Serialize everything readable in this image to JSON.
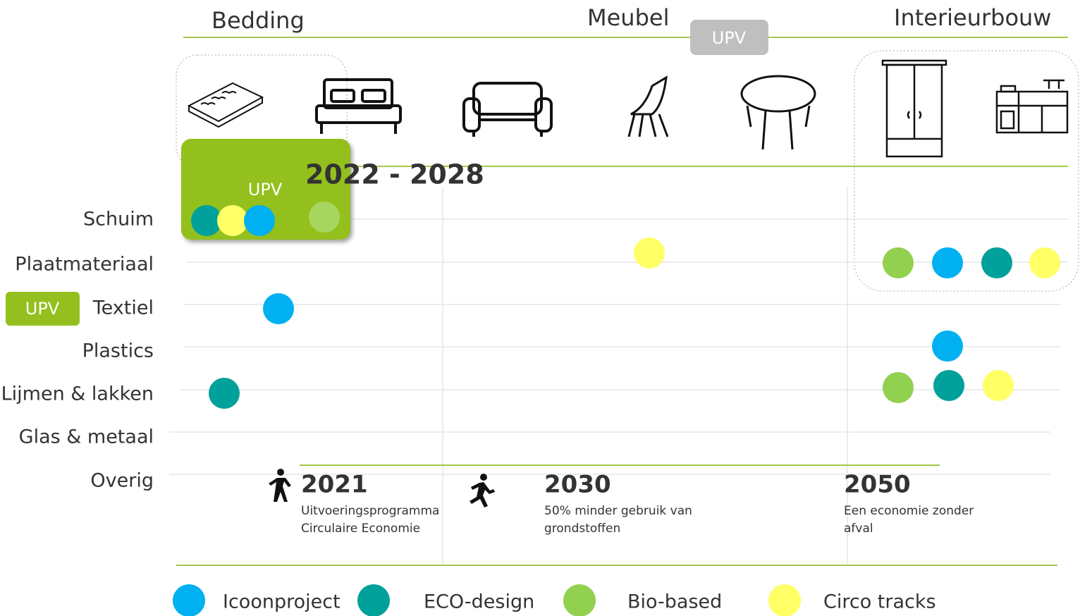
{
  "header": {
    "categories": [
      "Bedding",
      "Meubel",
      "Interieurbouw"
    ],
    "upv_tag": "UPV"
  },
  "highlight": {
    "label": "UPV",
    "period": "2022 - 2028"
  },
  "rows": [
    "Schuim",
    "Plaatmateriaal",
    "Textiel",
    "Plastics",
    "Lijmen & lakken",
    "Glas & metaal",
    "Overig"
  ],
  "row_badge": "UPV",
  "milestones": [
    {
      "year": "2021",
      "lines": [
        "Uitvoeringsprogramma",
        "Circulaire Economie"
      ]
    },
    {
      "year": "2030",
      "lines": [
        "50% minder gebruik van",
        "grondstoffen"
      ]
    },
    {
      "year": "2050",
      "lines": [
        "Een economie zonder",
        "afval"
      ]
    }
  ],
  "legend": [
    "Icoonproject",
    "ECO-design",
    "Bio-based",
    "Circo tracks"
  ]
}
